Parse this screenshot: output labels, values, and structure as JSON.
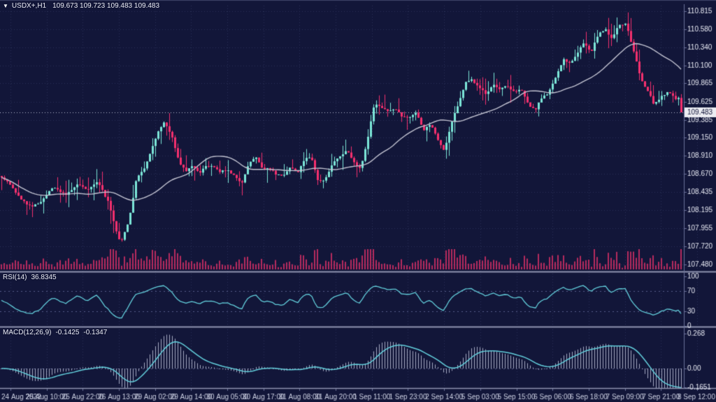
{
  "chart": {
    "dropdown_icon": "▼",
    "symbol_timeframe": "USDX+,H1",
    "ohlc": "109.673 109.723 109.483 109.483"
  },
  "rsi_label": {
    "name": "RSI(14)",
    "value": "36.8345"
  },
  "macd_label": {
    "name": "MACD(12,26,9)",
    "main": "-0.1425",
    "signal": "-0.1347"
  },
  "chart_data": {
    "type": "candlestick",
    "symbol": "USDX+",
    "timeframe": "H1",
    "last_candle": {
      "open": 109.673,
      "high": 109.723,
      "low": 109.483,
      "close": 109.483
    },
    "current_price": "109.483",
    "candle_count": 244,
    "price_axis_ticks": [
      "110.815",
      "110.580",
      "110.340",
      "110.100",
      "109.865",
      "109.625",
      "109.385",
      "109.150",
      "108.910",
      "108.670",
      "108.435",
      "108.195",
      "107.955",
      "107.720",
      "107.480"
    ],
    "time_axis_ticks": [
      "24 Aug 2022",
      "25 Aug 10:00",
      "25 Aug 22:00",
      "26 Aug 13:00",
      "29 Aug 02:00",
      "29 Aug 14:00",
      "30 Aug 05:00",
      "30 Aug 17:00",
      "31 Aug 08:00",
      "31 Aug 20:00",
      "1 Sep 11:00",
      "1 Sep 23:00",
      "2 Sep 14:00",
      "5 Sep 03:00",
      "5 Sep 15:00",
      "6 Sep 06:00",
      "6 Sep 18:00",
      "7 Sep 09:00",
      "7 Sep 21:00",
      "8 Sep 12:00"
    ],
    "close_path": [
      [
        2,
        108.65
      ],
      [
        30,
        108.34
      ],
      [
        45,
        108.21
      ],
      [
        60,
        108.34
      ],
      [
        75,
        108.48
      ],
      [
        95,
        108.39
      ],
      [
        110,
        108.53
      ],
      [
        125,
        108.48
      ],
      [
        140,
        108.57
      ],
      [
        155,
        108.3
      ],
      [
        165,
        107.93
      ],
      [
        172,
        107.75
      ],
      [
        185,
        108.11
      ],
      [
        195,
        108.62
      ],
      [
        205,
        108.71
      ],
      [
        215,
        108.94
      ],
      [
        225,
        109.22
      ],
      [
        235,
        109.35
      ],
      [
        245,
        109.17
      ],
      [
        255,
        108.85
      ],
      [
        265,
        108.71
      ],
      [
        275,
        108.76
      ],
      [
        285,
        108.67
      ],
      [
        295,
        108.8
      ],
      [
        305,
        108.76
      ],
      [
        315,
        108.67
      ],
      [
        325,
        108.71
      ],
      [
        335,
        108.62
      ],
      [
        345,
        108.57
      ],
      [
        355,
        108.8
      ],
      [
        365,
        108.89
      ],
      [
        375,
        108.71
      ],
      [
        385,
        108.76
      ],
      [
        395,
        108.67
      ],
      [
        405,
        108.62
      ],
      [
        415,
        108.76
      ],
      [
        425,
        108.67
      ],
      [
        435,
        108.85
      ],
      [
        445,
        108.89
      ],
      [
        455,
        108.57
      ],
      [
        465,
        108.62
      ],
      [
        475,
        108.8
      ],
      [
        485,
        108.89
      ],
      [
        495,
        108.99
      ],
      [
        505,
        108.85
      ],
      [
        515,
        108.76
      ],
      [
        525,
        109.12
      ],
      [
        535,
        109.58
      ],
      [
        545,
        109.54
      ],
      [
        555,
        109.49
      ],
      [
        565,
        109.54
      ],
      [
        575,
        109.45
      ],
      [
        585,
        109.4
      ],
      [
        595,
        109.49
      ],
      [
        605,
        109.26
      ],
      [
        615,
        109.31
      ],
      [
        625,
        109.17
      ],
      [
        635,
        108.99
      ],
      [
        645,
        109.31
      ],
      [
        655,
        109.58
      ],
      [
        665,
        109.86
      ],
      [
        675,
        109.95
      ],
      [
        685,
        109.81
      ],
      [
        695,
        109.72
      ],
      [
        705,
        109.86
      ],
      [
        715,
        109.77
      ],
      [
        725,
        109.81
      ],
      [
        735,
        109.77
      ],
      [
        745,
        109.77
      ],
      [
        755,
        109.58
      ],
      [
        765,
        109.49
      ],
      [
        775,
        109.68
      ],
      [
        785,
        109.77
      ],
      [
        795,
        109.95
      ],
      [
        805,
        110.18
      ],
      [
        815,
        110.09
      ],
      [
        825,
        110.27
      ],
      [
        835,
        110.41
      ],
      [
        845,
        110.27
      ],
      [
        855,
        110.5
      ],
      [
        865,
        110.59
      ],
      [
        875,
        110.45
      ],
      [
        885,
        110.64
      ],
      [
        895,
        110.69
      ],
      [
        905,
        110.32
      ],
      [
        915,
        109.95
      ],
      [
        925,
        109.77
      ],
      [
        935,
        109.58
      ],
      [
        945,
        109.68
      ],
      [
        955,
        109.77
      ],
      [
        965,
        109.63
      ],
      [
        975,
        109.52
      ]
    ],
    "indicators": {
      "ma_period": 28,
      "rsi": {
        "label": "RSI(14)",
        "value": 36.8345,
        "period": 14,
        "ticks": [
          "100",
          "70",
          "30",
          "0"
        ],
        "levels": [
          70,
          30
        ]
      },
      "macd": {
        "label": "MACD(12,26,9)",
        "fast": 12,
        "slow": 26,
        "signal_period": 9,
        "main": -0.1425,
        "signal": -0.1347,
        "ticks": [
          "0.268",
          "0.00",
          "-0.1651"
        ]
      }
    },
    "colors": {
      "background": "#121639",
      "grid": "#2c3158",
      "level_line": "#565c8a",
      "bullish": "#7ce6d8",
      "bearish": "#f5306e",
      "ma_line": "#c3c4d2",
      "volume": "#b62a5e",
      "indicator_line": "#63cfdc",
      "macd_histogram": "#a6abc3",
      "axis_text": "#e6e8f2",
      "time_text": "#ccd0e2",
      "separator": "#8f94b0",
      "axis_line": "#6b7199",
      "current_price_line": "#b9bdd2",
      "current_price_box_bg": "#ecedf2",
      "current_price_box_text": "#13163a"
    }
  }
}
